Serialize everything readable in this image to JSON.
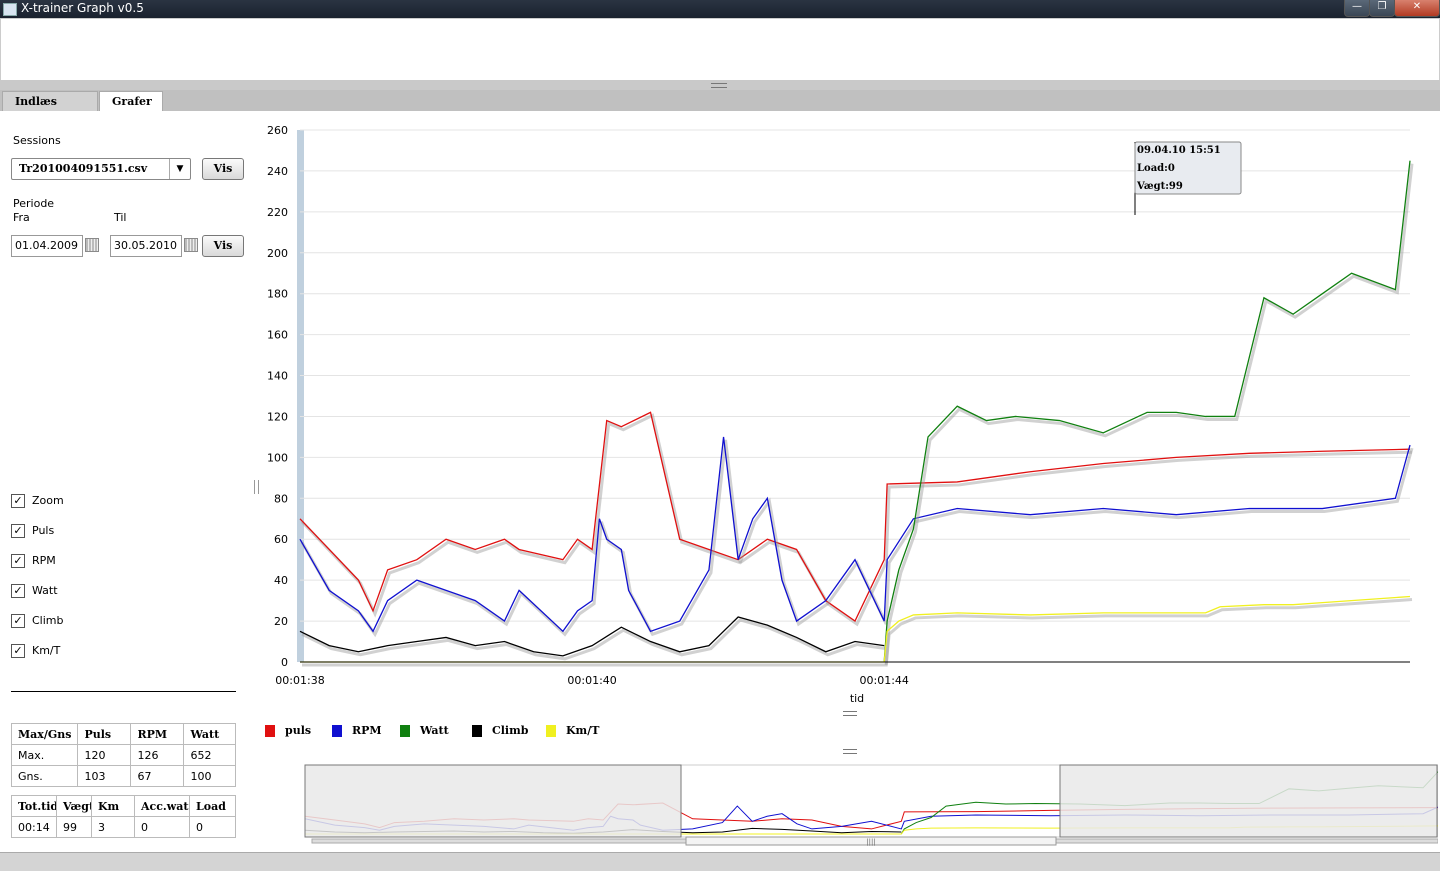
{
  "window": {
    "title": "X-trainer Graph v0.5",
    "min": "—",
    "max": "❐",
    "close": "✕"
  },
  "tabs": [
    {
      "label": "Indlæs Data"
    },
    {
      "label": "Grafer"
    }
  ],
  "sidebar": {
    "sessions_label": "Sessions",
    "session_value": "Tr201004091551.csv",
    "vis_label": "Vis",
    "periode_label": "Periode",
    "fra_label": "Fra",
    "til_label": "Til",
    "fra_value": "01.04.2009",
    "til_value": "30.05.2010",
    "checks": [
      {
        "label": "Zoom",
        "checked": true
      },
      {
        "label": "Puls",
        "checked": true
      },
      {
        "label": "RPM",
        "checked": true
      },
      {
        "label": "Watt",
        "checked": true
      },
      {
        "label": "Climb",
        "checked": true
      },
      {
        "label": "Km/T",
        "checked": true
      }
    ],
    "check_mark": "✓"
  },
  "stats1": {
    "header": [
      "Max/Gns",
      "Puls",
      "RPM",
      "Watt"
    ],
    "rows": [
      [
        "Max.",
        "120",
        "126",
        "652"
      ],
      [
        "Gns.",
        "103",
        "67",
        "100"
      ]
    ]
  },
  "stats2": {
    "header": [
      "Tot.tid",
      "Vægt",
      "Km",
      "Acc.watt",
      "Load"
    ],
    "rows": [
      [
        "00:14",
        "99",
        "3",
        "0",
        "0"
      ]
    ]
  },
  "tooltip": {
    "time": "09.04.10 15:51",
    "load": "Load:0",
    "weight": "Vægt:99"
  },
  "colors": {
    "puls": "#e01010",
    "rpm": "#1010d0",
    "watt": "#108010",
    "climb": "#000000",
    "kmt": "#f0f020"
  },
  "chart_data": {
    "type": "line",
    "xlabel": "tid",
    "ylabel": "",
    "ylim": [
      0,
      260
    ],
    "yticks": [
      0,
      20,
      40,
      60,
      80,
      100,
      120,
      140,
      160,
      180,
      200,
      220,
      240,
      260
    ],
    "xlim": [
      98,
      105.6
    ],
    "xticks": [
      {
        "v": 98,
        "label": "00:01:38"
      },
      {
        "v": 100,
        "label": "00:01:40"
      },
      {
        "v": 102,
        "label": "00:01:44"
      }
    ],
    "grid": true,
    "legend_position": "bottom",
    "series": [
      {
        "name": "puls",
        "color": "#e01010",
        "x": [
          98,
          98.2,
          98.4,
          98.5,
          98.6,
          98.8,
          99,
          99.2,
          99.4,
          99.5,
          99.8,
          99.9,
          100,
          100.1,
          100.2,
          100.4,
          100.6,
          100.8,
          101,
          101.2,
          101.4,
          101.6,
          101.8,
          102,
          102.02,
          102.5,
          103,
          103.5,
          104,
          104.5,
          105,
          105.6
        ],
        "y": [
          70,
          55,
          40,
          25,
          45,
          50,
          60,
          55,
          60,
          55,
          50,
          60,
          55,
          118,
          115,
          122,
          60,
          55,
          50,
          60,
          55,
          30,
          20,
          50,
          87,
          88,
          93,
          97,
          100,
          102,
          103,
          104
        ]
      },
      {
        "name": "RPM",
        "color": "#1010d0",
        "x": [
          98,
          98.2,
          98.4,
          98.5,
          98.6,
          98.8,
          99,
          99.2,
          99.4,
          99.5,
          99.8,
          99.9,
          100,
          100.05,
          100.1,
          100.2,
          100.25,
          100.4,
          100.6,
          100.8,
          100.9,
          101,
          101.1,
          101.2,
          101.3,
          101.4,
          101.6,
          101.8,
          102,
          102.02,
          102.2,
          102.5,
          103,
          103.5,
          104,
          104.5,
          105,
          105.5,
          105.6
        ],
        "y": [
          60,
          35,
          25,
          15,
          30,
          40,
          35,
          30,
          20,
          35,
          15,
          25,
          30,
          70,
          60,
          55,
          35,
          15,
          20,
          45,
          110,
          50,
          70,
          80,
          40,
          20,
          30,
          50,
          20,
          50,
          70,
          75,
          72,
          75,
          72,
          75,
          75,
          80,
          106
        ]
      },
      {
        "name": "Watt",
        "color": "#108010",
        "x": [
          102,
          102.02,
          102.1,
          102.2,
          102.3,
          102.5,
          102.7,
          102.9,
          103.2,
          103.5,
          103.8,
          104,
          104.2,
          104.4,
          104.6,
          104.8,
          105,
          105.2,
          105.5,
          105.6
        ],
        "y": [
          0,
          20,
          45,
          65,
          110,
          125,
          118,
          120,
          118,
          112,
          122,
          122,
          120,
          120,
          178,
          170,
          180,
          190,
          182,
          245
        ]
      },
      {
        "name": "Climb",
        "color": "#000000",
        "x": [
          98,
          98.2,
          98.4,
          98.6,
          98.8,
          99,
          99.2,
          99.4,
          99.6,
          99.8,
          100,
          100.2,
          100.4,
          100.6,
          100.8,
          101,
          101.2,
          101.4,
          101.6,
          101.8,
          102
        ],
        "y": [
          15,
          8,
          5,
          8,
          10,
          12,
          8,
          10,
          5,
          3,
          8,
          17,
          10,
          5,
          8,
          22,
          18,
          12,
          5,
          10,
          8
        ]
      },
      {
        "name": "Km/T",
        "color": "#f0f020",
        "x": [
          98,
          102,
          102.02,
          102.1,
          102.2,
          102.5,
          103,
          103.5,
          104,
          104.2,
          104.3,
          104.6,
          104.8,
          105,
          105.6
        ],
        "y": [
          0,
          0,
          15,
          20,
          23,
          24,
          23,
          24,
          24,
          24,
          27,
          28,
          28,
          29,
          32
        ]
      }
    ]
  }
}
